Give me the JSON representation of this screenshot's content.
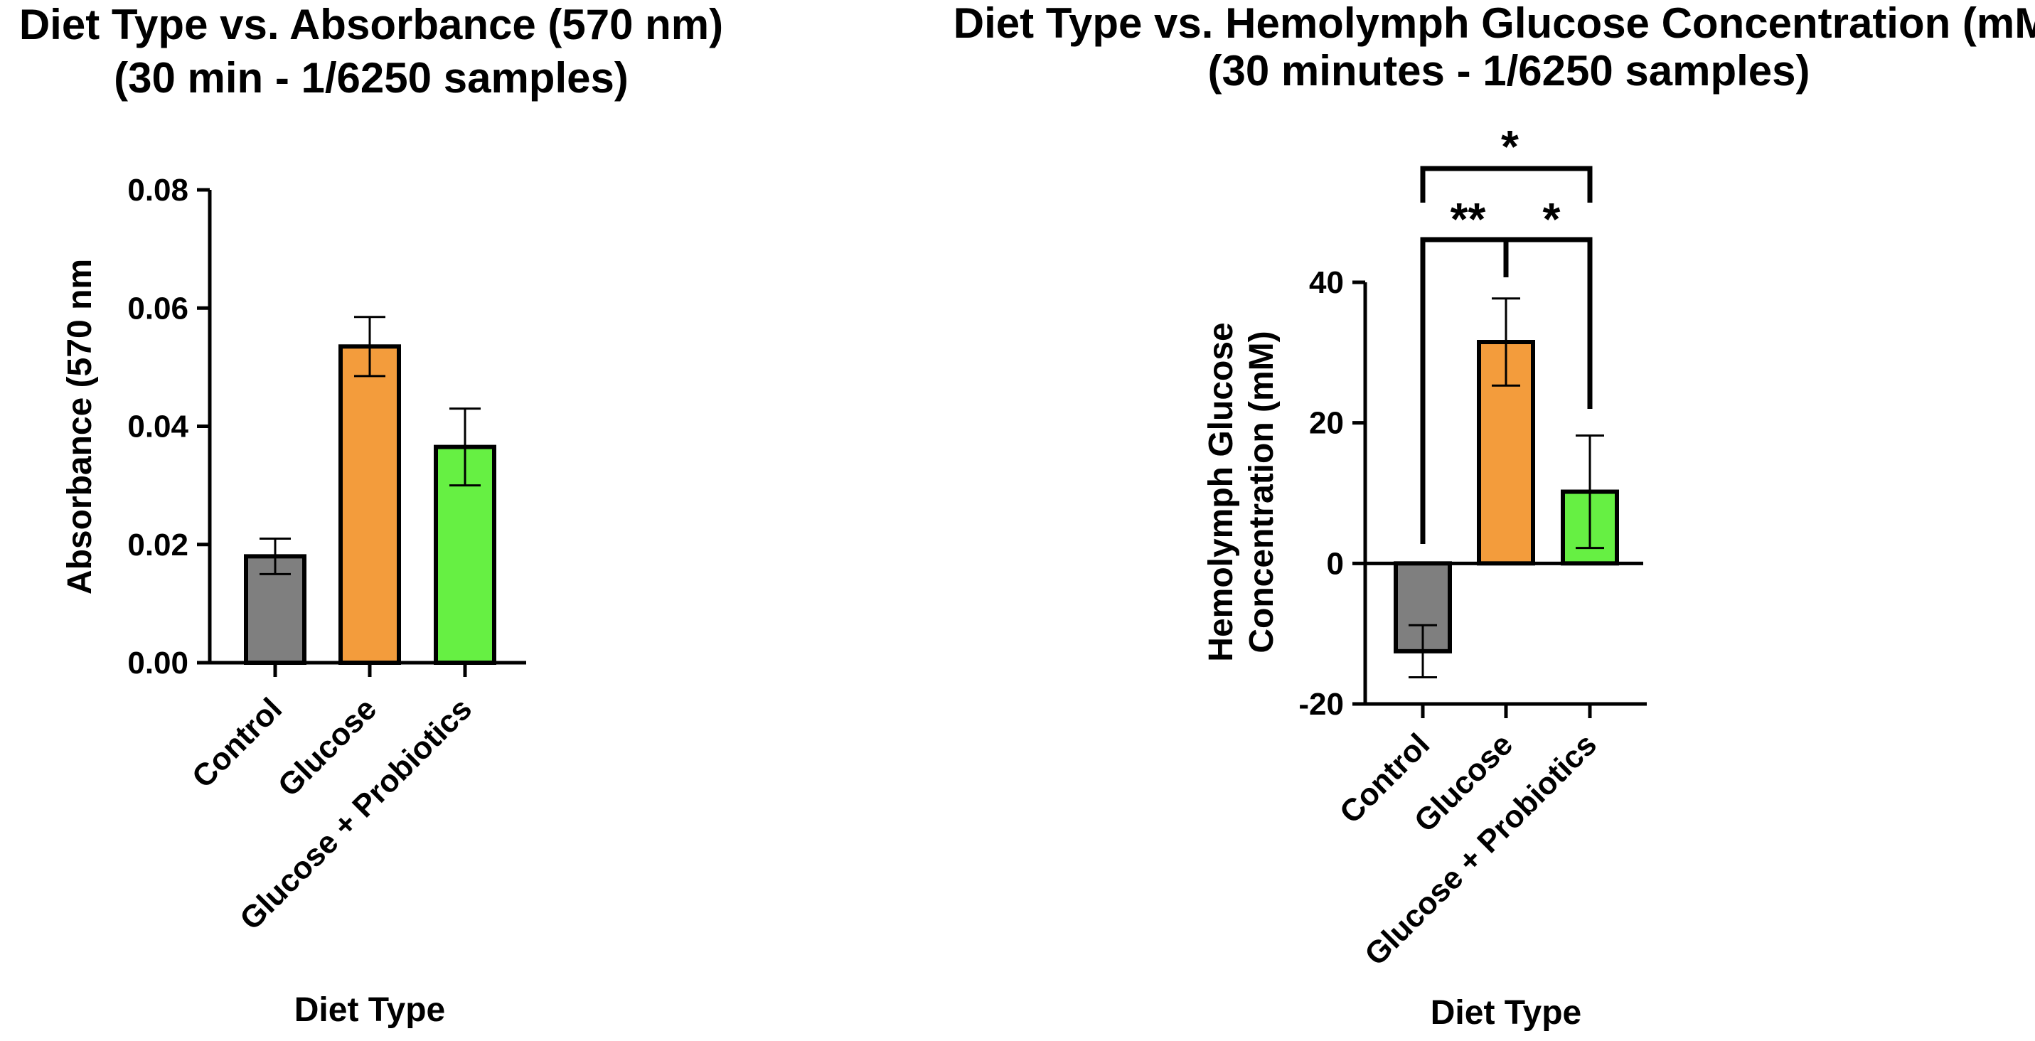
{
  "chart_data": [
    {
      "type": "bar",
      "title_lines": [
        "Diet Type vs. Absorbance (570 nm)",
        "(30 min - 1/6250 samples)"
      ],
      "xlabel": "Diet Type",
      "ylabel": "Absorbance (570 nm",
      "categories": [
        "Control",
        "Glucose",
        "Glucose + Probiotics"
      ],
      "values": [
        0.018,
        0.0535,
        0.0365
      ],
      "errors": [
        0.003,
        0.005,
        0.0065
      ],
      "colors": [
        "#7f7f7f",
        "#f39c3c",
        "#66f043"
      ],
      "ylim": [
        0,
        0.08
      ],
      "yticks": [
        0.0,
        0.02,
        0.04,
        0.06,
        0.08
      ],
      "ytick_labels": [
        "0.00",
        "0.02",
        "0.04",
        "0.06",
        "0.08"
      ],
      "grid": false,
      "legend": "none"
    },
    {
      "type": "bar",
      "title_lines": [
        "Diet Type vs. Hemolymph Glucose Concentration (mM)",
        "(30 minutes - 1/6250 samples)"
      ],
      "xlabel": "Diet Type",
      "ylabel_lines": [
        "Hemolymph Glucose",
        "Concentration (mM)"
      ],
      "categories": [
        "Control",
        "Glucose",
        "Glucose + Probiotics"
      ],
      "values": [
        -12.5,
        31.5,
        10.2
      ],
      "errors": [
        3.7,
        6.2,
        8.0
      ],
      "colors": [
        "#7f7f7f",
        "#f39c3c",
        "#66f043"
      ],
      "ylim": [
        -20,
        40
      ],
      "yticks": [
        -20,
        0,
        20,
        40
      ],
      "ytick_labels": [
        "-20",
        "0",
        "20",
        "40"
      ],
      "grid": false,
      "legend": "none",
      "significance": [
        {
          "groups": [
            "Control",
            "Glucose"
          ],
          "label": "**"
        },
        {
          "groups": [
            "Glucose",
            "Glucose + Probiotics"
          ],
          "label": "*"
        },
        {
          "groups": [
            "Control",
            "Glucose + Probiotics"
          ],
          "label": "*"
        }
      ]
    }
  ]
}
